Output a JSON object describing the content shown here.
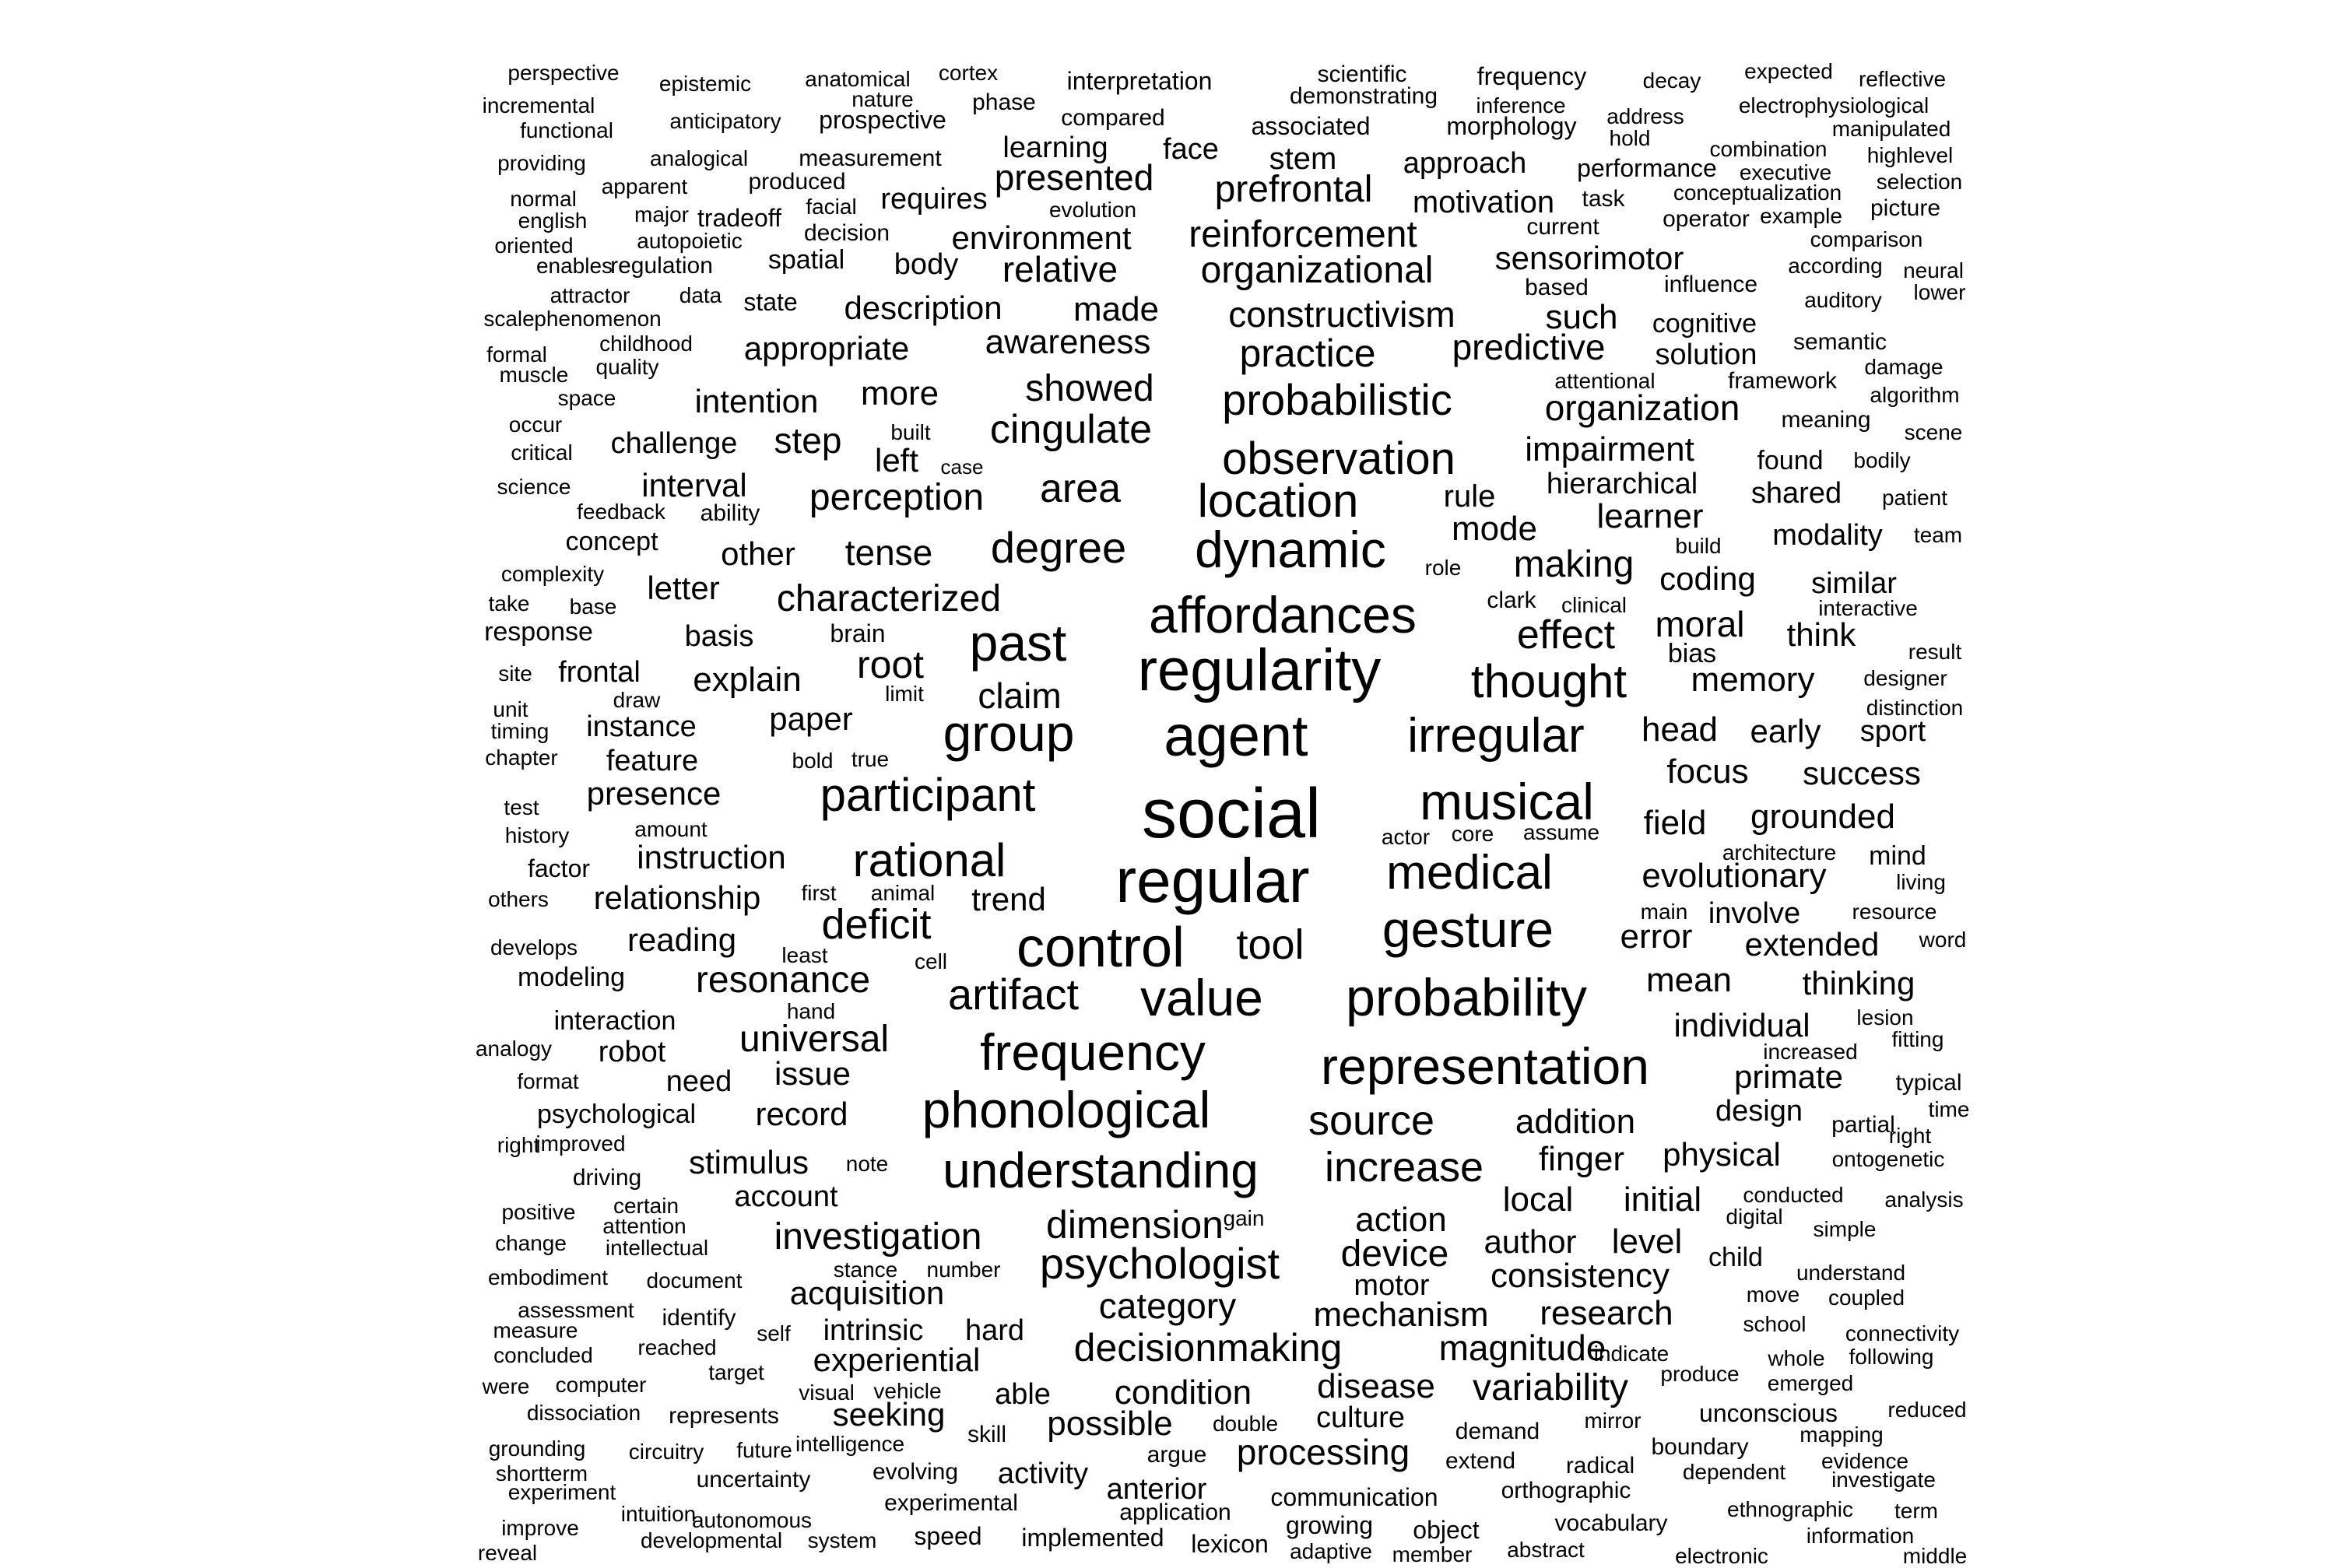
{
  "cloud": {
    "color": "#000000",
    "background": "#ffffff",
    "words": [
      "perspective",
      "epistemic",
      "anatomical",
      "cortex",
      "interpretation",
      "scientific",
      "frequency",
      "decay",
      "expected",
      "reflective",
      "incremental",
      "nature",
      "phase",
      "demonstrating",
      "inference",
      "address",
      "electrophysiological",
      "functional",
      "anticipatory",
      "prospective",
      "compared",
      "associated",
      "morphology",
      "hold",
      "manipulated",
      "providing",
      "analogical",
      "measurement",
      "learning",
      "face",
      "stem",
      "approach",
      "performance",
      "combination",
      "highlevel",
      "normal",
      "apparent",
      "produced",
      "presented",
      "prefrontal",
      "executive",
      "selection",
      "english",
      "major",
      "tradeoff",
      "facial",
      "requires",
      "evolution",
      "motivation",
      "task",
      "conceptualization",
      "picture",
      "oriented",
      "autopoietic",
      "decision",
      "environment",
      "reinforcement",
      "current",
      "operator",
      "example",
      "comparison",
      "enables",
      "regulation",
      "spatial",
      "body",
      "relative",
      "organizational",
      "sensorimotor",
      "according",
      "neural",
      "attractor",
      "data",
      "state",
      "description",
      "influence",
      "auditory",
      "lower",
      "scale",
      "phenomenon",
      "made",
      "constructivism",
      "based",
      "such",
      "cognitive",
      "formal",
      "childhood",
      "appropriate",
      "awareness",
      "practice",
      "predictive",
      "solution",
      "semantic",
      "muscle",
      "quality",
      "framework",
      "damage",
      "space",
      "intention",
      "more",
      "showed",
      "probabilistic",
      "attentional",
      "organization",
      "algorithm",
      "occur",
      "built",
      "cingulate",
      "meaning",
      "scene",
      "critical",
      "challenge",
      "step",
      "left",
      "case",
      "observation",
      "impairment",
      "found",
      "bodily",
      "science",
      "interval",
      "area",
      "perception",
      "location",
      "hierarchical",
      "rule",
      "shared",
      "patient",
      "feedback",
      "ability",
      "learner",
      "concept",
      "degree",
      "dynamic",
      "mode",
      "modality",
      "team",
      "other",
      "tense",
      "build",
      "complexity",
      "role",
      "making",
      "coding",
      "similar",
      "letter",
      "characterized",
      "clark",
      "clinical",
      "affordances",
      "take",
      "base",
      "interactive",
      "response",
      "basis",
      "brain",
      "moral",
      "think",
      "effect",
      "result",
      "regularity",
      "site",
      "frontal",
      "root",
      "bias",
      "explain",
      "past",
      "memory",
      "thought",
      "designer",
      "claim",
      "limit",
      "draw",
      "unit",
      "paper",
      "distinction",
      "instance",
      "irregular",
      "timing",
      "group",
      "agent",
      "head",
      "early",
      "sport",
      "chapter",
      "bold",
      "true",
      "feature",
      "focus",
      "success",
      "test",
      "participant",
      "presence",
      "social",
      "musical",
      "amount",
      "history",
      "field",
      "grounded",
      "actor",
      "core",
      "assume",
      "architecture",
      "instruction",
      "rational",
      "mind",
      "factor",
      "regular",
      "medical",
      "living",
      "evolutionary",
      "others",
      "first",
      "animal",
      "relationship",
      "trend",
      "main",
      "deficit",
      "involve",
      "resource",
      "gesture",
      "develops",
      "reading",
      "least",
      "error",
      "extended",
      "word",
      "control",
      "cell",
      "tool",
      "resonance",
      "mean",
      "modeling",
      "thinking",
      "hand",
      "probability",
      "artifact",
      "value",
      "lesion",
      "interaction",
      "individual",
      "fitting",
      "universal",
      "analogy",
      "robot",
      "increased",
      "frequency",
      "format",
      "issue",
      "need",
      "primate",
      "typical",
      "representation",
      "time",
      "psychological",
      "record",
      "design",
      "right",
      "partial",
      "phonological",
      "source",
      "addition",
      "improved",
      "stimulus",
      "physical",
      "finger",
      "ontogenetic",
      "understanding",
      "driving",
      "note",
      "increase",
      "right",
      "positive",
      "certain",
      "account",
      "conducted",
      "local",
      "initial",
      "analysis",
      "attention",
      "gain",
      "digital",
      "dimension",
      "action",
      "change",
      "intellectual",
      "investigation",
      "simple",
      "author",
      "level",
      "child",
      "device",
      "embodiment",
      "document",
      "stance",
      "number",
      "psychologist",
      "understand",
      "consistency",
      "move",
      "coupled",
      "motor",
      "acquisition",
      "assessment",
      "category",
      "measure",
      "identify",
      "research",
      "hard",
      "mechanism",
      "school",
      "intrinsic",
      "connectivity",
      "self",
      "reached",
      "indicate",
      "magnitude",
      "decisionmaking",
      "concluded",
      "whole",
      "following",
      "produce",
      "target",
      "experiential",
      "were",
      "computer",
      "emerged",
      "visual",
      "vehicle",
      "disease",
      "variability",
      "condition",
      "able",
      "dissociation",
      "unconscious",
      "represents",
      "reduced",
      "seeking",
      "culture",
      "skill",
      "mirror",
      "possible",
      "demand",
      "mapping",
      "grounding",
      "double",
      "circuitry",
      "intelligence",
      "future",
      "boundary",
      "argue",
      "evidence",
      "processing",
      "shortterm",
      "extend",
      "radical",
      "uncertainty",
      "dependent",
      "activity",
      "evolving",
      "investigate",
      "experiment",
      "anterior",
      "orthographic",
      "experimental",
      "intuition",
      "communication",
      "ethnographic",
      "term",
      "application",
      "improve",
      "autonomous",
      "growing",
      "vocabulary",
      "object",
      "information",
      "developmental",
      "system",
      "speed",
      "implemented",
      "reveal",
      "lexicon",
      "adaptive",
      "abstract",
      "member",
      "electronic",
      "middle"
    ]
  }
}
